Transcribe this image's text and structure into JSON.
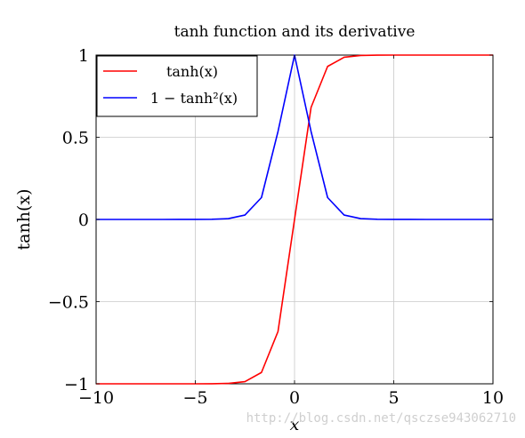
{
  "chart_data": {
    "type": "line",
    "title": "tanh function and its derivative",
    "xlabel": "x",
    "ylabel": "tanh(x)",
    "xlim": [
      -10,
      10
    ],
    "ylim": [
      -1,
      1
    ],
    "grid": true,
    "legend_position": "top-left",
    "x_ticks": [
      {
        "value": -10,
        "label": "−10"
      },
      {
        "value": -5,
        "label": "−5"
      },
      {
        "value": 0,
        "label": "0"
      },
      {
        "value": 5,
        "label": "5"
      },
      {
        "value": 10,
        "label": "10"
      }
    ],
    "y_ticks": [
      {
        "value": -1,
        "label": "−1"
      },
      {
        "value": -0.5,
        "label": "−0.5"
      },
      {
        "value": 0,
        "label": "0"
      },
      {
        "value": 0.5,
        "label": "0.5"
      },
      {
        "value": 1,
        "label": "1"
      }
    ],
    "x": [
      -10,
      -9.167,
      -8.333,
      -7.5,
      -6.667,
      -5.833,
      -5,
      -4.167,
      -3.333,
      -2.5,
      -1.667,
      -0.833,
      0,
      0.833,
      1.667,
      2.5,
      3.333,
      4.167,
      5,
      5.833,
      6.667,
      7.5,
      8.333,
      9.167,
      10
    ],
    "series": [
      {
        "name": "tanh(x)",
        "color": "#ff0000",
        "values": [
          -1,
          -1,
          -1,
          -1,
          -1,
          -1,
          -1,
          -0.9995,
          -0.9975,
          -0.9866,
          -0.9311,
          -0.6818,
          0,
          0.6818,
          0.9311,
          0.9866,
          0.9975,
          0.9995,
          1,
          1,
          1,
          1,
          1,
          1,
          1
        ]
      },
      {
        "name": "1 − tanh²(x)",
        "color": "#0000ff",
        "values": [
          0,
          0,
          0,
          0,
          0,
          0.0004,
          0.0002,
          0.001,
          0.005,
          0.0266,
          0.1331,
          0.5351,
          1,
          0.5351,
          0.1331,
          0.0266,
          0.005,
          0.001,
          0.0002,
          0.0004,
          0,
          0,
          0,
          0,
          0
        ]
      }
    ]
  },
  "watermark": "http://blog.csdn.net/qsczse943062710"
}
